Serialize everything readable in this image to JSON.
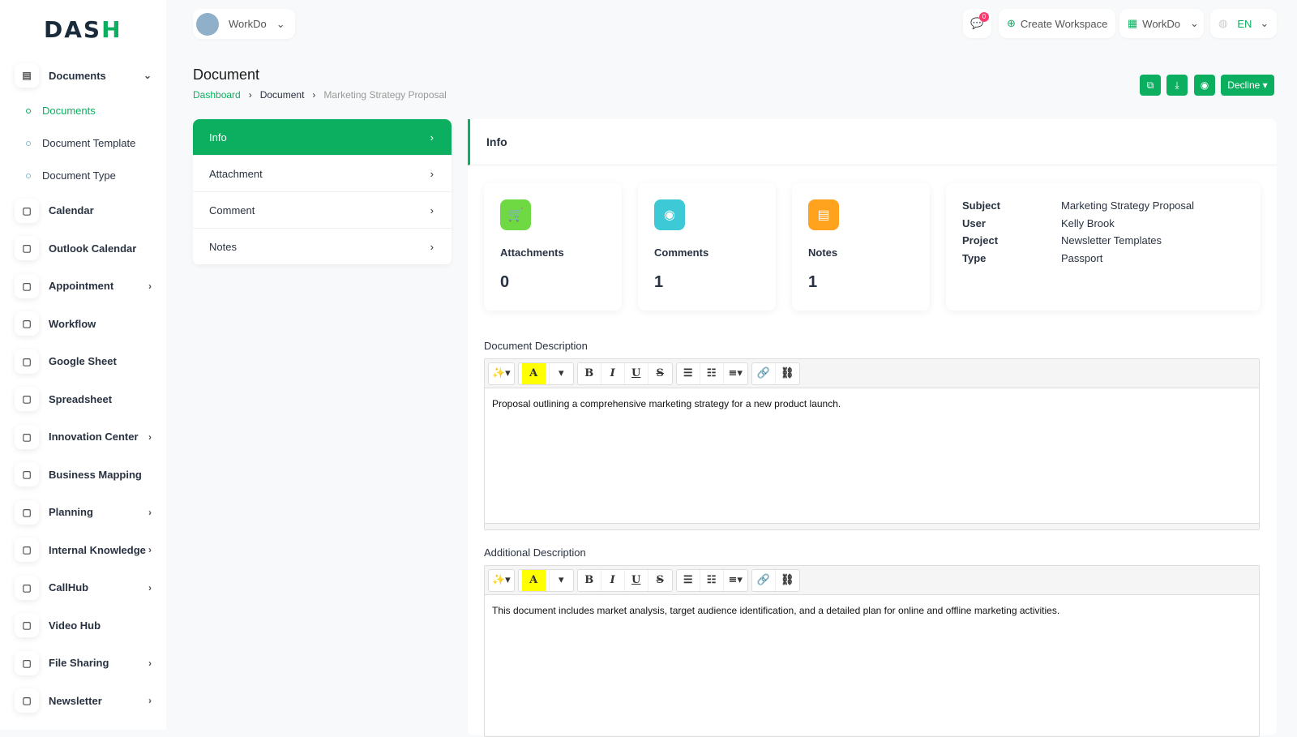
{
  "logo": {
    "text": "DASH"
  },
  "sidebar": {
    "documents": {
      "label": "Documents",
      "children": [
        "Documents",
        "Document Template",
        "Document Type"
      ]
    },
    "items": [
      {
        "label": "Calendar",
        "icon": "calendar-icon",
        "chev": false
      },
      {
        "label": "Outlook Calendar",
        "icon": "calendar-icon",
        "chev": false
      },
      {
        "label": "Appointment",
        "icon": "calendar-clock-icon",
        "chev": true
      },
      {
        "label": "Workflow",
        "icon": "workflow-icon",
        "chev": false
      },
      {
        "label": "Google Sheet",
        "icon": "table-icon",
        "chev": false
      },
      {
        "label": "Spreadsheet",
        "icon": "file-icon",
        "chev": false
      },
      {
        "label": "Innovation Center",
        "icon": "bulb-icon",
        "chev": true
      },
      {
        "label": "Business Mapping",
        "icon": "circle-dashed-icon",
        "chev": false
      },
      {
        "label": "Planning",
        "icon": "planning-icon",
        "chev": true
      },
      {
        "label": "Internal Knowledge",
        "icon": "book-icon",
        "chev": true
      },
      {
        "label": "CallHub",
        "icon": "phone-icon",
        "chev": true
      },
      {
        "label": "Video Hub",
        "icon": "video-icon",
        "chev": false
      },
      {
        "label": "File Sharing",
        "icon": "file-icon",
        "chev": true
      },
      {
        "label": "Newsletter",
        "icon": "mail-icon",
        "chev": true
      }
    ]
  },
  "header": {
    "workspace": "WorkDo",
    "notif_count": "0",
    "create_workspace": "Create Workspace",
    "user_workspace": "WorkDo",
    "lang": "EN"
  },
  "page": {
    "title": "Document",
    "breadcrumb": [
      "Dashboard",
      "Document",
      "Marketing Strategy Proposal"
    ],
    "decline": "Decline"
  },
  "tabs": [
    "Info",
    "Attachment",
    "Comment",
    "Notes"
  ],
  "info": {
    "title": "Info",
    "stats": [
      {
        "label": "Attachments",
        "value": "0",
        "color": "#6fd943"
      },
      {
        "label": "Comments",
        "value": "1",
        "color": "#3ec9d6"
      },
      {
        "label": "Notes",
        "value": "1",
        "color": "#ffa21d"
      }
    ],
    "details": [
      {
        "k": "Subject",
        "v": "Marketing Strategy Proposal"
      },
      {
        "k": "User",
        "v": "Kelly Brook"
      },
      {
        "k": "Project",
        "v": "Newsletter Templates"
      },
      {
        "k": "Type",
        "v": "Passport"
      }
    ],
    "doc_desc_label": "Document Description",
    "doc_desc": "Proposal outlining a comprehensive marketing strategy for a new product launch.",
    "add_desc_label": "Additional Description",
    "add_desc": "This document includes market analysis, target audience identification, and a detailed plan for online and offline marketing activities."
  },
  "colors": {
    "accent": "#0caf60"
  }
}
